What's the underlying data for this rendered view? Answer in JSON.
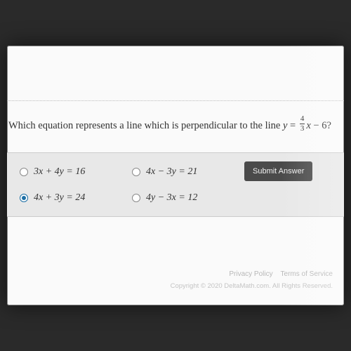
{
  "colors": {
    "outer_bg": "#2a2a2a",
    "screen_bg": "#fafafa",
    "panel_bg": "#e8e8e8",
    "text": "#333333",
    "radio_border": "#8a8a8a",
    "radio_selected": "#1d6fa5",
    "submit_bg": "#4a4a4a",
    "submit_text": "#f0f0f0",
    "footer_text": "#b8b8b8"
  },
  "question": {
    "prefix": "Which equation represents a line which is perpendicular to the line ",
    "eq_lhs": "y",
    "eq_eq": " = ",
    "frac_num": "4",
    "frac_den": "3",
    "eq_rhs_var": "x",
    "eq_tail": " − 6?"
  },
  "options": [
    {
      "label": "3x + 4y = 16",
      "selected": false
    },
    {
      "label": "4x − 3y = 21",
      "selected": false
    },
    {
      "label": "4x + 3y = 24",
      "selected": true
    },
    {
      "label": "4y − 3x = 12",
      "selected": false
    }
  ],
  "submit_label": "Submit Answer",
  "footer": {
    "privacy": "Privacy Policy",
    "terms": "Terms of Service",
    "copyright": "Copyright © 2020 DeltaMath.com. All Rights Reserved."
  }
}
